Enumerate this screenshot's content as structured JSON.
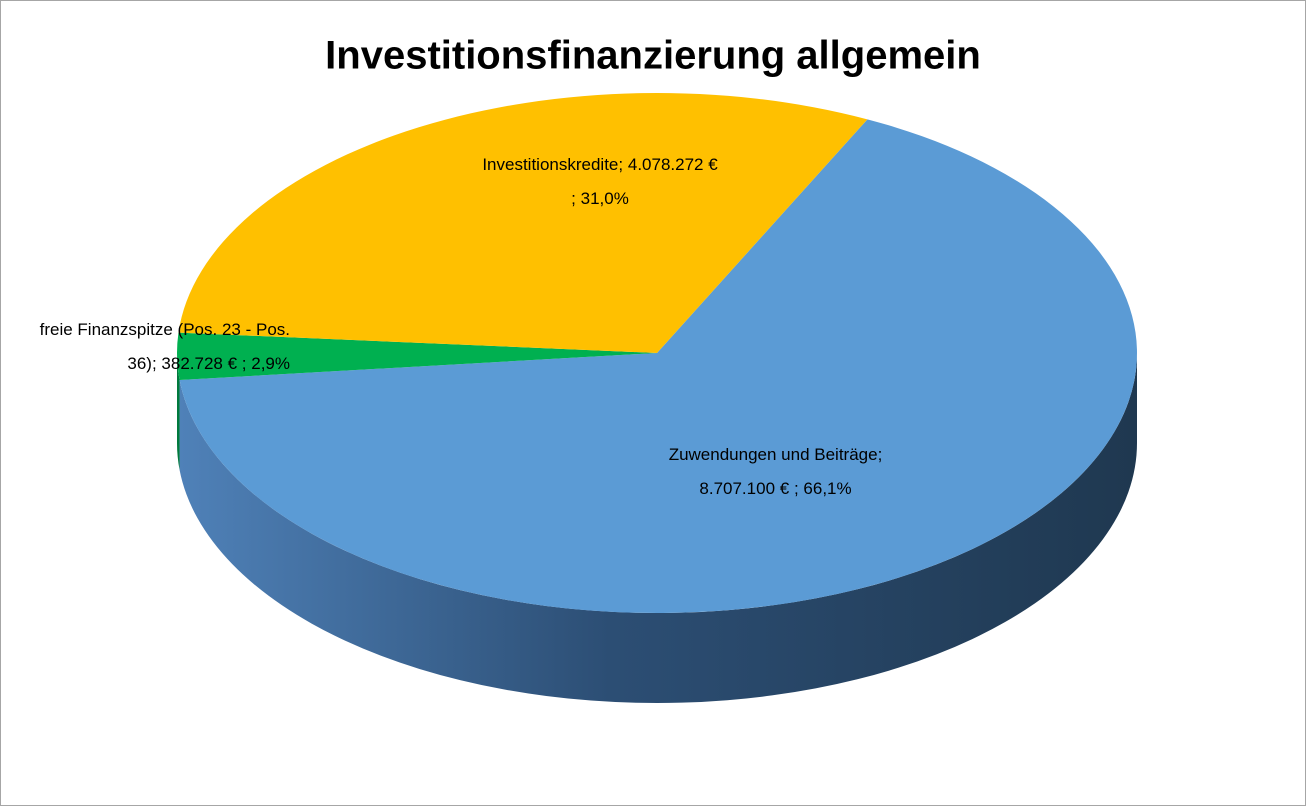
{
  "chart_data": {
    "type": "pie",
    "title": "Investitionsfinanzierung allgemein",
    "categories": [
      "Zuwendungen und Beiträge",
      "freie Finanzspitze (Pos. 23 - Pos. 36)",
      "Investitionskredite"
    ],
    "values": [
      8707100,
      382728,
      4078272
    ],
    "value_labels": [
      "8.707.100 €",
      "382.728 €",
      "4.078.272 €"
    ],
    "percents": [
      66.1,
      2.9,
      31.0
    ],
    "percent_labels": [
      "66,1%",
      "2,9%",
      "31,0%"
    ],
    "separator": ";",
    "colors": [
      "#5b9bd5",
      "#00b050",
      "#ffc000"
    ]
  }
}
